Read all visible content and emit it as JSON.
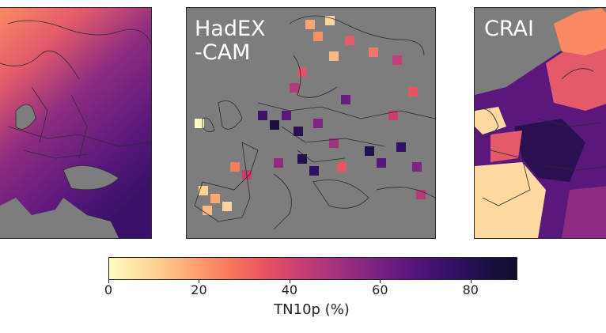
{
  "panels": [
    {
      "id": "left",
      "label": ""
    },
    {
      "id": "mid",
      "label": "HadEX\n-CAM"
    },
    {
      "id": "right",
      "label": "CRAI"
    }
  ],
  "colorbar": {
    "colormap": "magma_r",
    "min": 0,
    "max": 90,
    "ticks": [
      "0",
      "20",
      "40",
      "60",
      "80"
    ],
    "tick_values": [
      0,
      20,
      40,
      60,
      80
    ],
    "label": "TN10p (%)"
  },
  "colors": {
    "land_no_data": "#7d7d7d",
    "coastline": "#2b2b2b"
  }
}
